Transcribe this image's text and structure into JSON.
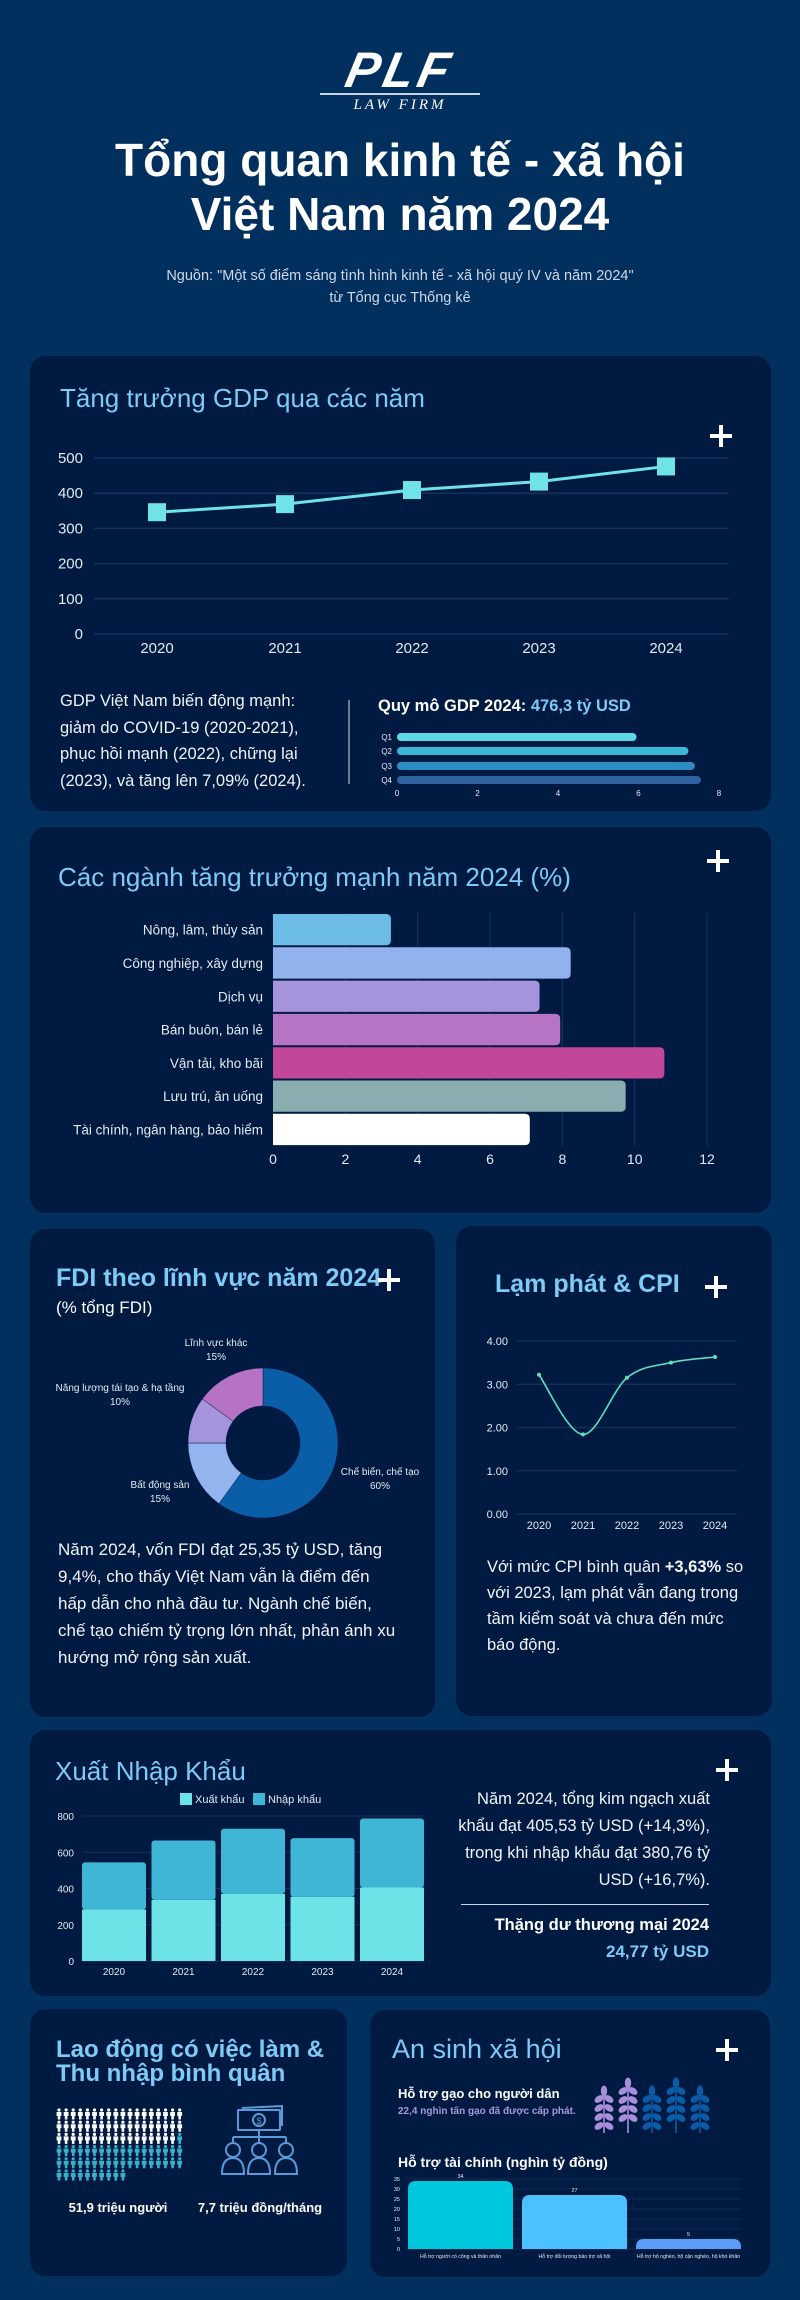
{
  "header": {
    "logo": "PLF",
    "logo_sub": "LAW FIRM",
    "title_line1": "Tổng quan kinh tế - xã hội",
    "title_line2": "Việt Nam năm 2024",
    "source_prefix": "Nguồn: \"",
    "source_link": "Một số điểm sáng tình hình kinh tế - xã hội quý IV và năm 2024",
    "source_suffix": "\"",
    "source_line2": "từ Tổng cục Thống kê"
  },
  "gdp": {
    "title": "Tăng trưởng GDP qua các năm",
    "description": "GDP Việt Nam biến động mạnh: giảm do COVID-19 (2020-2021), phục hồi mạnh (2022), chững lại (2023), và tăng lên 7,09% (2024).",
    "size_label": "Quy mô GDP 2024: ",
    "size_value": "476,3 tỷ USD"
  },
  "sectors": {
    "title": "Các ngành tăng trưởng mạnh năm 2024 (%)"
  },
  "fdi": {
    "title": "FDI theo lĩnh vực năm 2024",
    "subtitle": "(% tổng FDI)",
    "description": "Năm 2024, vốn FDI đạt 25,35 tỷ USD, tăng 9,4%, cho thấy Việt Nam vẫn là điểm đến hấp dẫn cho nhà đầu tư. Ngành chế biến, chế tạo chiếm tỷ trọng lớn nhất, phản ánh xu hướng mở rộng sản xuất."
  },
  "cpi": {
    "title": "Lạm phát & CPI",
    "desc_prefix": "Với mức CPI bình quân ",
    "desc_bold": "+3,63%",
    "desc_rest": " so với 2023, lạm phát vẫn đang trong tầm kiểm soát và chưa đến mức báo động."
  },
  "trade": {
    "title": "Xuất Nhập Khẩu",
    "description": "Năm 2024, tổng kim ngạch xuất khẩu đạt 405,53 tỷ USD (+14,3%), trong khi nhập khẩu đạt 380,76 tỷ USD (+16,7%).",
    "surplus_label": "Thặng dư thương mại 2024",
    "surplus_value": "24,77 tỷ USD"
  },
  "labor": {
    "title": "Lao động có việc làm & Thu nhập bình quân",
    "employed": "51,9 triệu người",
    "income": "7,7 triệu đồng/tháng",
    "people_icon": "person-icon",
    "money_icon": "money-distribution-icon"
  },
  "welfare": {
    "title": "An sinh xã hội",
    "rice_title": "Hỗ trợ gạo cho người dân",
    "rice_desc": "22,4 nghìn tấn gạo đã được cấp phát.",
    "rice_icon": "wheat-icon",
    "finance_title": "Hỗ trợ tài chính (nghìn tỷ đồng)"
  },
  "colors": {
    "background": "#02305e",
    "card": "#001a42",
    "title": "#7ecbf6",
    "accent": "#6fe3e8"
  },
  "chart_data": [
    {
      "id": "gdp",
      "type": "line",
      "categories": [
        "2020",
        "2021",
        "2022",
        "2023",
        "2024"
      ],
      "values": [
        346,
        369,
        409,
        433,
        476
      ],
      "ylim": [
        0,
        500
      ],
      "yticks": [
        0,
        100,
        200,
        300,
        400,
        500
      ],
      "grid": true,
      "color": "#6fe3e8"
    },
    {
      "id": "gdp_quarter",
      "type": "bar",
      "orientation": "horizontal",
      "categories": [
        "Q1",
        "Q2",
        "Q3",
        "Q4"
      ],
      "values": [
        5.95,
        7.24,
        7.4,
        7.55
      ],
      "xlim": [
        0,
        8
      ],
      "xticks": [
        0,
        2,
        4,
        6,
        8
      ],
      "colors": [
        "#5fd8e6",
        "#3bb8d8",
        "#2d8dc0",
        "#2f62a0"
      ]
    },
    {
      "id": "sectors",
      "type": "bar",
      "orientation": "horizontal",
      "categories": [
        "Nông, lâm, thủy sản",
        "Công nghiệp, xây dựng",
        "Dịch vụ",
        "Bán buôn, bán lẻ",
        "Vận tải, kho bãi",
        "Lưu trú, ăn uống",
        "Tài chính, ngân hàng, bảo hiểm"
      ],
      "values": [
        3.26,
        8.23,
        7.37,
        7.94,
        10.82,
        9.75,
        7.1
      ],
      "xlim": [
        0,
        12
      ],
      "xticks": [
        0,
        2,
        4,
        6,
        8,
        10,
        12
      ],
      "grid": true,
      "colors": [
        "#6bbde6",
        "#92b2ee",
        "#a593dc",
        "#b674c4",
        "#c2469a",
        "#8aaeb0",
        "#ffffff"
      ]
    },
    {
      "id": "fdi",
      "type": "pie",
      "donut": true,
      "slices": [
        {
          "label": "Chế biến, chế tạo",
          "value": 60,
          "display": "60%",
          "color": "#0a5ea8"
        },
        {
          "label": "Bất động sản",
          "value": 15,
          "display": "15%",
          "color": "#93b4ee"
        },
        {
          "label": "Năng lượng tái tạo & hạ tầng",
          "value": 10,
          "display": "10%",
          "color": "#a594dc"
        },
        {
          "label": "Lĩnh vực khác",
          "value": 15,
          "display": "15%",
          "color": "#b673c4"
        }
      ]
    },
    {
      "id": "cpi",
      "type": "line",
      "smooth": true,
      "categories": [
        "2020",
        "2021",
        "2022",
        "2023",
        "2024"
      ],
      "values": [
        3.22,
        1.84,
        3.15,
        3.5,
        3.63
      ],
      "ylim": [
        0,
        4
      ],
      "yticks": [
        "0.00",
        "1.00",
        "2.00",
        "3.00",
        "4.00"
      ],
      "grid": true,
      "color": "#5ce0c0"
    },
    {
      "id": "trade",
      "type": "bar",
      "stacked": true,
      "categories": [
        "2020",
        "2021",
        "2022",
        "2023",
        "2024"
      ],
      "series": [
        {
          "name": "Xuất khẩu",
          "values": [
            284,
            337,
            370,
            354,
            405.53
          ],
          "color": "#6de3e8"
        },
        {
          "name": "Nhập khẩu",
          "values": [
            260,
            328,
            360,
            324,
            380.76
          ],
          "color": "#3fb6d6"
        }
      ],
      "ylim": [
        0,
        800
      ],
      "yticks": [
        0,
        200,
        400,
        600,
        800
      ],
      "legend": "top",
      "grid": true
    },
    {
      "id": "welfare",
      "type": "bar",
      "categories": [
        "Hỗ trợ người có công và thân nhân",
        "Hỗ trợ đối tượng bảo trợ xã hội",
        "Hỗ trợ hộ nghèo, hộ cận nghèo, hộ khó khăn"
      ],
      "values": [
        34,
        27,
        5
      ],
      "ylim": [
        0,
        35
      ],
      "yticks": [
        0,
        5,
        10,
        15,
        20,
        25,
        30,
        35
      ],
      "grid": true,
      "colors": [
        "#00c8dc",
        "#4bc2ff",
        "#5b9cf6"
      ]
    }
  ]
}
